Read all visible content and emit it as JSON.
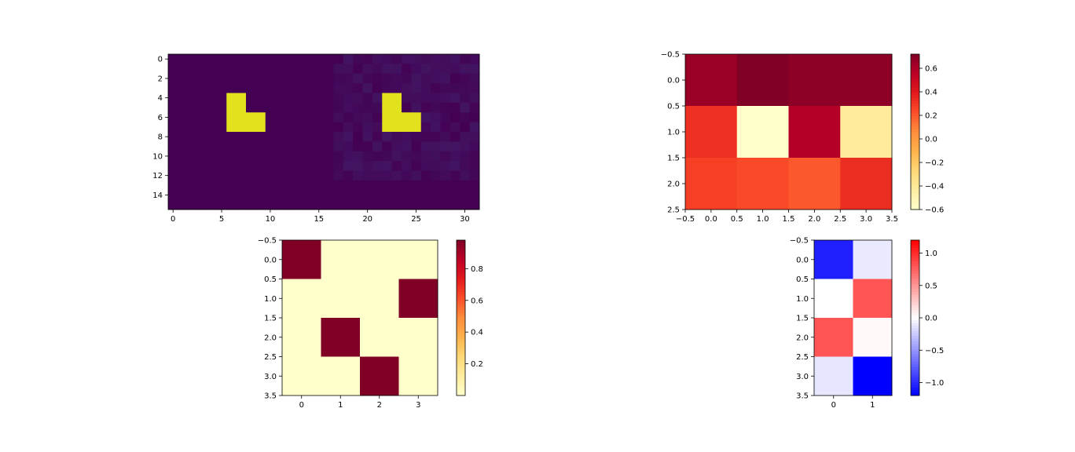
{
  "chart_data": [
    {
      "type": "heatmap",
      "panel": "top-left",
      "colormap": "viridis",
      "rows": 16,
      "cols": 32,
      "vmin": 0,
      "vmax": 1,
      "base_value": 0.0,
      "blocks": [
        {
          "rows": [
            4,
            5
          ],
          "cols": [
            6,
            7
          ],
          "value": 1.0
        },
        {
          "rows": [
            6,
            7
          ],
          "cols": [
            6,
            7,
            8,
            9
          ],
          "value": 1.0
        },
        {
          "rows": [
            4,
            5
          ],
          "cols": [
            22,
            23
          ],
          "value": 1.0
        },
        {
          "rows": [
            6,
            7
          ],
          "cols": [
            22,
            23,
            24,
            25
          ],
          "value": 1.0
        }
      ],
      "noise_region": {
        "rows": [
          0,
          12
        ],
        "cols": [
          17,
          31
        ],
        "max_value": 0.06
      },
      "xticks": [
        "0",
        "5",
        "10",
        "15",
        "20",
        "25",
        "30"
      ],
      "yticks": [
        "0",
        "2",
        "4",
        "6",
        "8",
        "10",
        "12",
        "14"
      ],
      "colorbar": false
    },
    {
      "type": "heatmap",
      "panel": "top-right",
      "colormap": "YlOrRd",
      "rows": 3,
      "cols": 4,
      "vmin": -0.6,
      "vmax": 0.72,
      "values": [
        [
          0.65,
          0.72,
          0.68,
          0.68
        ],
        [
          0.32,
          -0.6,
          0.58,
          -0.42
        ],
        [
          0.27,
          0.24,
          0.2,
          0.33
        ]
      ],
      "xticks": [
        "−0.5",
        "0.0",
        "0.5",
        "1.0",
        "1.5",
        "2.0",
        "2.5",
        "3.0",
        "3.5"
      ],
      "yticks": [
        "−0.5",
        "0.0",
        "0.5",
        "1.0",
        "1.5",
        "2.0",
        "2.5"
      ],
      "colorbar_ticks": [
        "−0.6",
        "−0.4",
        "−0.2",
        "0.0",
        "0.2",
        "0.4",
        "0.6"
      ]
    },
    {
      "type": "heatmap",
      "panel": "bottom-left",
      "colormap": "YlOrRd",
      "rows": 4,
      "cols": 4,
      "vmin": 0.0,
      "vmax": 0.98,
      "values": [
        [
          0.98,
          0.0,
          0.0,
          0.0
        ],
        [
          0.0,
          0.0,
          0.0,
          0.98
        ],
        [
          0.0,
          0.98,
          0.0,
          0.0
        ],
        [
          0.0,
          0.0,
          0.98,
          0.0
        ]
      ],
      "xticks": [
        "0",
        "1",
        "2",
        "3"
      ],
      "yticks": [
        "−0.5",
        "0.0",
        "0.5",
        "1.0",
        "1.5",
        "2.0",
        "2.5",
        "3.0",
        "3.5"
      ],
      "colorbar_ticks": [
        "0.2",
        "0.4",
        "0.6",
        "0.8"
      ]
    },
    {
      "type": "heatmap",
      "panel": "bottom-right",
      "colormap": "bwr",
      "rows": 4,
      "cols": 2,
      "vmin": -1.2,
      "vmax": 1.2,
      "values": [
        [
          -1.05,
          -0.1
        ],
        [
          0.0,
          0.8
        ],
        [
          0.8,
          0.03
        ],
        [
          -0.12,
          -1.2
        ]
      ],
      "xticks": [
        "0",
        "1"
      ],
      "yticks": [
        "−0.5",
        "0.0",
        "0.5",
        "1.0",
        "1.5",
        "2.0",
        "2.5",
        "3.0",
        "3.5"
      ],
      "colorbar_ticks": [
        "−1.0",
        "−0.5",
        "0.0",
        "0.5",
        "1.0"
      ]
    }
  ]
}
